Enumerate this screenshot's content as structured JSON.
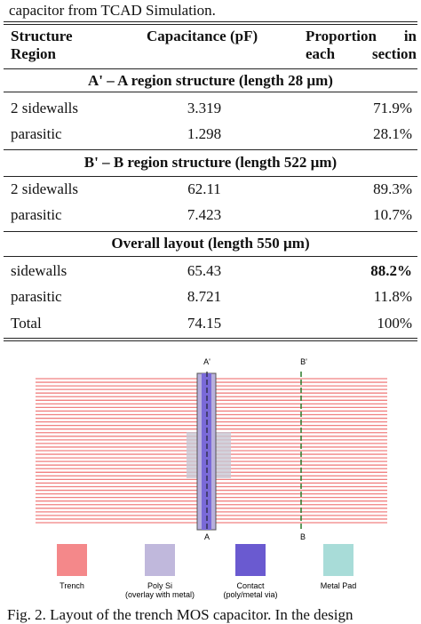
{
  "caption_top": "capacitor from TCAD Simulation.",
  "table": {
    "headers": [
      "Structure Region",
      "Capacitance (pF)",
      "Proportion in each section"
    ],
    "sections": [
      {
        "title": "A' – A region structure (length 28 µm)",
        "rows": [
          [
            "2 sidewalls",
            "3.319",
            "71.9%"
          ],
          [
            "parasitic",
            "1.298",
            "28.1%"
          ]
        ]
      },
      {
        "title": "B' – B region structure (length 522 µm)",
        "rows": [
          [
            "2 sidewalls",
            "62.11",
            "89.3%"
          ],
          [
            "parasitic",
            "7.423",
            "10.7%"
          ]
        ]
      },
      {
        "title": "Overall layout (length 550 µm)",
        "rows": [
          [
            "sidewalls",
            "65.43",
            "88.2%"
          ],
          [
            "parasitic",
            "8.721",
            "11.8%"
          ],
          [
            "Total",
            "74.15",
            "100%"
          ]
        ]
      }
    ]
  },
  "figure": {
    "cut_labels": [
      "A'",
      "B'",
      "A",
      "B"
    ],
    "legend": [
      {
        "label": "Trench",
        "sub": null
      },
      {
        "label": "Poly Si",
        "sub": "(overlay with metal)"
      },
      {
        "label": "Contact",
        "sub": "(poly/metal via)"
      },
      {
        "label": "Metal Pad",
        "sub": null
      }
    ]
  },
  "caption_bottom": "Fig. 2. Layout of the trench MOS capacitor. In the design"
}
